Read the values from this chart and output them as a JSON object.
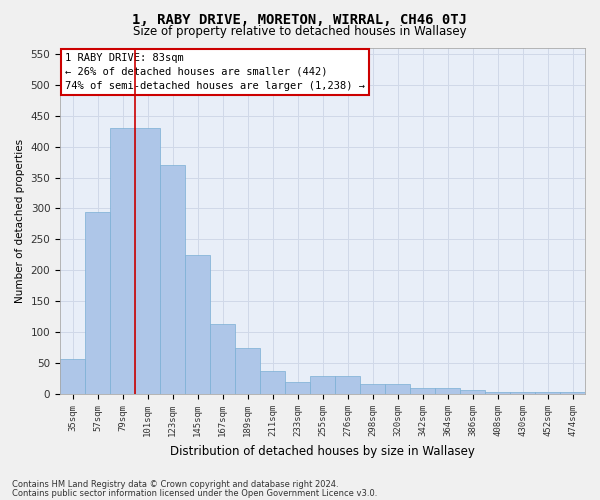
{
  "title": "1, RABY DRIVE, MORETON, WIRRAL, CH46 0TJ",
  "subtitle": "Size of property relative to detached houses in Wallasey",
  "xlabel": "Distribution of detached houses by size in Wallasey",
  "ylabel": "Number of detached properties",
  "categories": [
    "35sqm",
    "57sqm",
    "79sqm",
    "101sqm",
    "123sqm",
    "145sqm",
    "167sqm",
    "189sqm",
    "211sqm",
    "233sqm",
    "255sqm",
    "276sqm",
    "298sqm",
    "320sqm",
    "342sqm",
    "364sqm",
    "386sqm",
    "408sqm",
    "430sqm",
    "452sqm",
    "474sqm"
  ],
  "values": [
    57,
    295,
    430,
    430,
    370,
    225,
    113,
    75,
    37,
    19,
    29,
    29,
    16,
    16,
    10,
    10,
    7,
    4,
    4,
    4,
    3
  ],
  "bar_color": "#aec6e8",
  "bar_edge_color": "#7aafd4",
  "property_line_x": 2.5,
  "annotation_text": "1 RABY DRIVE: 83sqm\n← 26% of detached houses are smaller (442)\n74% of semi-detached houses are larger (1,238) →",
  "annotation_box_color": "#ffffff",
  "annotation_box_edgecolor": "#cc0000",
  "vline_color": "#cc0000",
  "grid_color": "#d0d8e8",
  "bg_color": "#e8eef8",
  "fig_bg_color": "#f0f0f0",
  "ylim": [
    0,
    560
  ],
  "yticks": [
    0,
    50,
    100,
    150,
    200,
    250,
    300,
    350,
    400,
    450,
    500,
    550
  ],
  "footnote1": "Contains HM Land Registry data © Crown copyright and database right 2024.",
  "footnote2": "Contains public sector information licensed under the Open Government Licence v3.0."
}
